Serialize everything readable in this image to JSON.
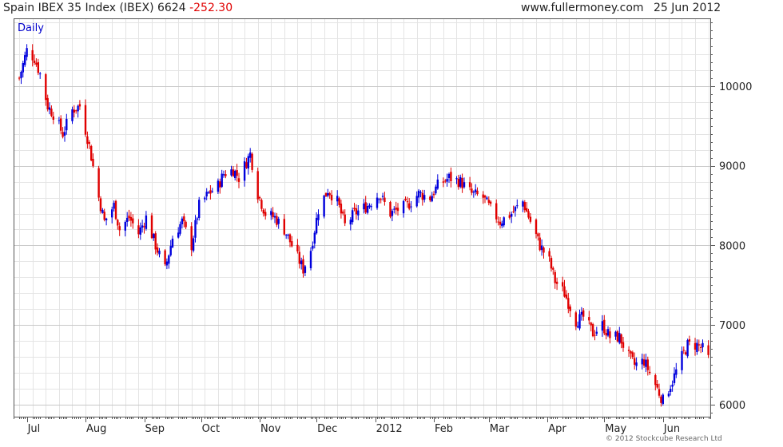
{
  "header": {
    "title": "Spain IBEX 35 Index (IBEX) 6624",
    "change": "-252.30",
    "site": "www.fullermoney.com",
    "date": "25 Jun 2012"
  },
  "footer": "© 2012 Stockcube Research Ltd",
  "colors": {
    "up": "#0000dd",
    "down": "#e00000",
    "grid": "#e4e4e4",
    "axis": "#555555"
  },
  "chart_data": {
    "type": "candlestick",
    "period_label": "Daily",
    "ylim": [
      5850,
      10850
    ],
    "y_ticks": [
      6000,
      7000,
      8000,
      9000,
      10000
    ],
    "y_axis": "right",
    "grid": true,
    "xlim": [
      "2011-06-24",
      "2012-06-26"
    ],
    "x_ticks": [
      {
        "date": "2011-07-01",
        "label": "Jul"
      },
      {
        "date": "2011-08-01",
        "label": "Aug"
      },
      {
        "date": "2011-09-01",
        "label": "Sep"
      },
      {
        "date": "2011-10-01",
        "label": "Oct"
      },
      {
        "date": "2011-11-01",
        "label": "Nov"
      },
      {
        "date": "2011-12-01",
        "label": "Dec"
      },
      {
        "date": "2012-01-01",
        "label": "2012"
      },
      {
        "date": "2012-02-01",
        "label": "Feb"
      },
      {
        "date": "2012-03-01",
        "label": "Mar"
      },
      {
        "date": "2012-04-01",
        "label": "Apr"
      },
      {
        "date": "2012-05-01",
        "label": "May"
      },
      {
        "date": "2012-06-01",
        "label": "Jun"
      }
    ],
    "close_path": [
      [
        "2011-06-27",
        10100
      ],
      [
        "2011-07-01",
        10450
      ],
      [
        "2011-07-05",
        10350
      ],
      [
        "2011-07-08",
        10150
      ],
      [
        "2011-07-12",
        9750
      ],
      [
        "2011-07-15",
        9650
      ],
      [
        "2011-07-20",
        9400
      ],
      [
        "2011-07-25",
        9700
      ],
      [
        "2011-07-29",
        9750
      ],
      [
        "2011-08-03",
        9250
      ],
      [
        "2011-08-08",
        8600
      ],
      [
        "2011-08-11",
        8300
      ],
      [
        "2011-08-16",
        8500
      ],
      [
        "2011-08-19",
        8200
      ],
      [
        "2011-08-24",
        8350
      ],
      [
        "2011-08-29",
        8150
      ],
      [
        "2011-09-02",
        8350
      ],
      [
        "2011-09-07",
        8000
      ],
      [
        "2011-09-12",
        7700
      ],
      [
        "2011-09-16",
        8100
      ],
      [
        "2011-09-21",
        8300
      ],
      [
        "2011-09-26",
        8000
      ],
      [
        "2011-09-30",
        8500
      ],
      [
        "2011-10-05",
        8650
      ],
      [
        "2011-10-10",
        8750
      ],
      [
        "2011-10-13",
        8900
      ],
      [
        "2011-10-18",
        8950
      ],
      [
        "2011-10-21",
        8850
      ],
      [
        "2011-10-27",
        9150
      ],
      [
        "2011-10-31",
        8650
      ],
      [
        "2011-11-04",
        8400
      ],
      [
        "2011-11-09",
        8350
      ],
      [
        "2011-11-14",
        8200
      ],
      [
        "2011-11-18",
        8000
      ],
      [
        "2011-11-24",
        7700
      ],
      [
        "2011-11-28",
        7950
      ],
      [
        "2011-12-02",
        8450
      ],
      [
        "2011-12-07",
        8700
      ],
      [
        "2011-12-12",
        8550
      ],
      [
        "2011-12-16",
        8250
      ],
      [
        "2011-12-21",
        8400
      ],
      [
        "2011-12-28",
        8500
      ],
      [
        "2012-01-03",
        8650
      ],
      [
        "2012-01-09",
        8400
      ],
      [
        "2012-01-13",
        8450
      ],
      [
        "2012-01-18",
        8500
      ],
      [
        "2012-01-24",
        8650
      ],
      [
        "2012-01-30",
        8600
      ],
      [
        "2012-02-03",
        8750
      ],
      [
        "2012-02-09",
        8850
      ],
      [
        "2012-02-15",
        8800
      ],
      [
        "2012-02-21",
        8650
      ],
      [
        "2012-02-27",
        8600
      ],
      [
        "2012-03-02",
        8450
      ],
      [
        "2012-03-07",
        8300
      ],
      [
        "2012-03-13",
        8400
      ],
      [
        "2012-03-19",
        8550
      ],
      [
        "2012-03-23",
        8300
      ],
      [
        "2012-03-28",
        8000
      ],
      [
        "2012-04-02",
        7800
      ],
      [
        "2012-04-05",
        7550
      ],
      [
        "2012-04-10",
        7400
      ],
      [
        "2012-04-16",
        7050
      ],
      [
        "2012-04-20",
        7100
      ],
      [
        "2012-04-25",
        6900
      ],
      [
        "2012-04-30",
        7000
      ],
      [
        "2012-05-04",
        6850
      ],
      [
        "2012-05-09",
        6850
      ],
      [
        "2012-05-14",
        6600
      ],
      [
        "2012-05-17",
        6500
      ],
      [
        "2012-05-22",
        6550
      ],
      [
        "2012-05-25",
        6400
      ],
      [
        "2012-05-29",
        6200
      ],
      [
        "2012-06-01",
        6050
      ],
      [
        "2012-06-06",
        6300
      ],
      [
        "2012-06-11",
        6600
      ],
      [
        "2012-06-14",
        6750
      ],
      [
        "2012-06-19",
        6750
      ],
      [
        "2012-06-22",
        6700
      ],
      [
        "2012-06-25",
        6624
      ]
    ]
  }
}
